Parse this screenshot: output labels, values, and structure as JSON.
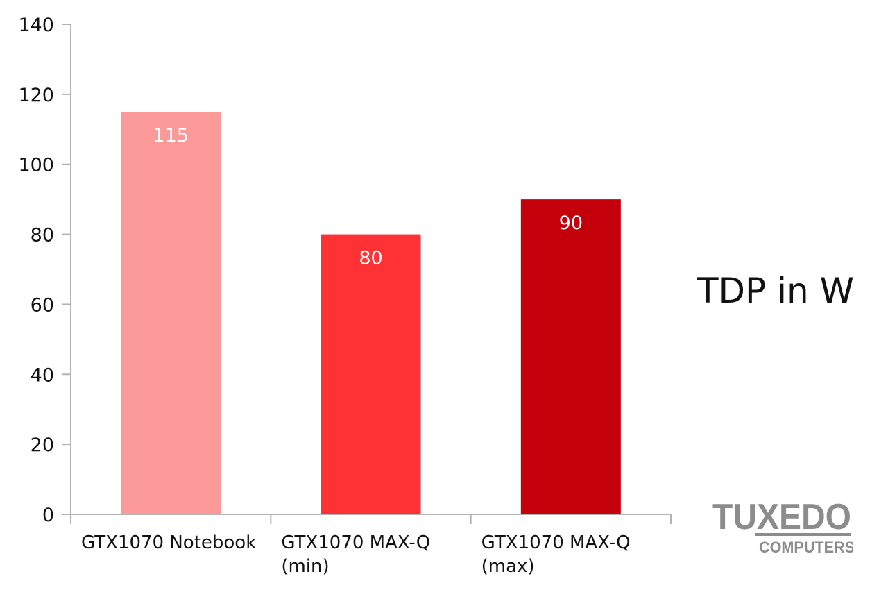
{
  "chart_data": {
    "type": "bar",
    "title": "",
    "annotation": "TDP in W",
    "xlabel": "",
    "ylabel": "",
    "ylim": [
      0,
      140
    ],
    "yticks": [
      0,
      20,
      40,
      60,
      80,
      100,
      120,
      140
    ],
    "grid": false,
    "categories": [
      [
        "GTX1070 Notebook"
      ],
      [
        "GTX1070 MAX-Q",
        "(min)"
      ],
      [
        "GTX1070 MAX-Q",
        "(max)"
      ]
    ],
    "values": [
      115,
      80,
      90
    ],
    "data_labels": [
      "115",
      "80",
      "90"
    ],
    "colors": [
      "#fc9a9a",
      "#fe3235",
      "#c4000b"
    ],
    "text_color": "#111111",
    "axis_color": "#b3b3b3"
  },
  "logo": {
    "main_text": "TUXEDO",
    "sub_text": "COMPUTERS",
    "color": "#8c8c8c"
  }
}
